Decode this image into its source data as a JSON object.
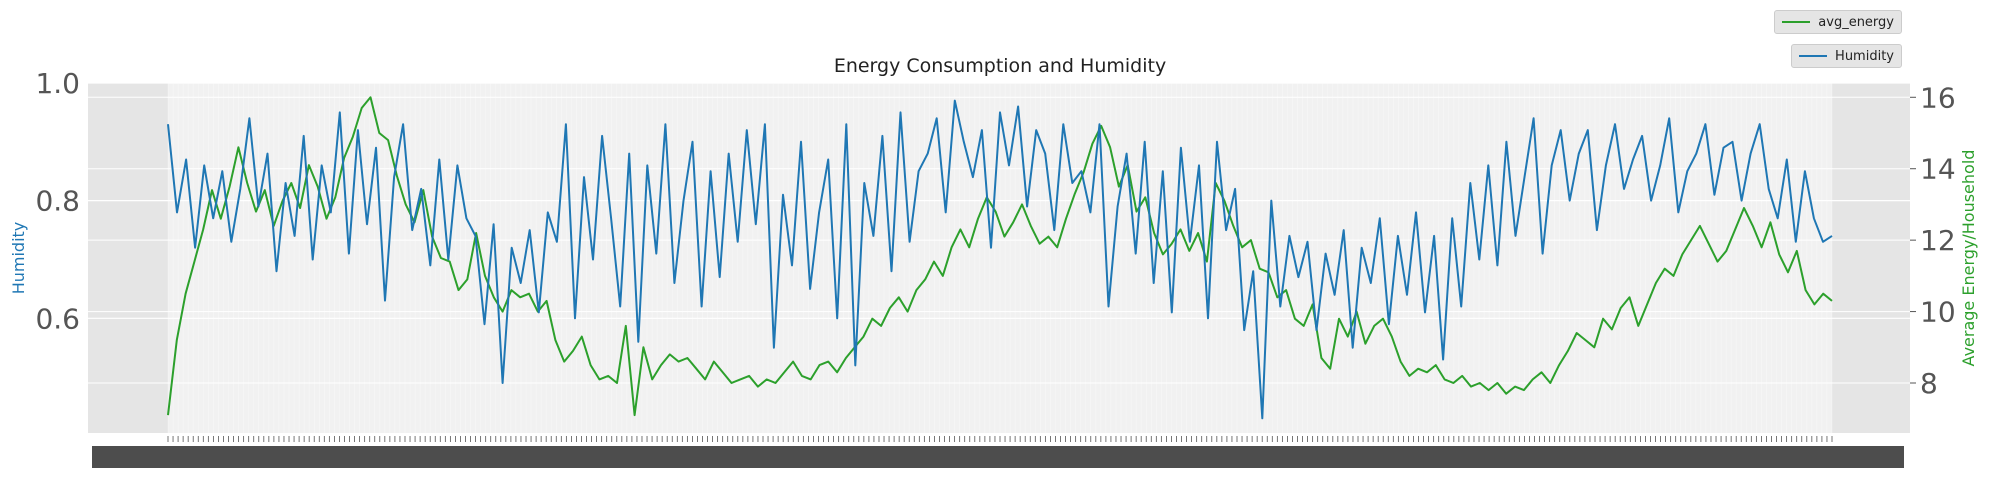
{
  "chart_data": {
    "type": "line",
    "title": "Energy Consumption and Humidity",
    "x_label": "",
    "y_left_label": "Humidity",
    "y_right_label": "Average Energy/Household",
    "y_left_ticks": [
      "0.6",
      "0.8",
      "1.0"
    ],
    "y_right_ticks": [
      "8",
      "10",
      "12",
      "14",
      "16"
    ],
    "y_left_range": [
      0.405,
      1.0
    ],
    "y_right_range": [
      6.6,
      16.4
    ],
    "x_tick_labels_note": "",
    "grid": true,
    "legend_placement": "top-right outside",
    "series": [
      {
        "name": "avg_energy",
        "axis": "right",
        "color": "#2ca02c",
        "values": [
          7.1,
          9.2,
          10.5,
          11.4,
          12.3,
          13.4,
          12.6,
          13.5,
          14.6,
          13.6,
          12.8,
          13.4,
          12.4,
          13.1,
          13.6,
          12.9,
          14.1,
          13.5,
          12.6,
          13.2,
          14.3,
          14.9,
          15.7,
          16.0,
          15.0,
          14.8,
          13.8,
          13.0,
          12.5,
          13.4,
          12.1,
          11.5,
          11.4,
          10.6,
          10.9,
          12.2,
          11.0,
          10.4,
          10.0,
          10.6,
          10.4,
          10.5,
          10.0,
          10.3,
          9.2,
          8.6,
          8.9,
          9.3,
          8.5,
          8.1,
          8.2,
          8.0,
          9.6,
          7.1,
          9.0,
          8.1,
          8.5,
          8.8,
          8.6,
          8.7,
          8.4,
          8.1,
          8.6,
          8.3,
          8.0,
          8.1,
          8.2,
          7.9,
          8.1,
          8.0,
          8.3,
          8.6,
          8.2,
          8.1,
          8.5,
          8.6,
          8.3,
          8.7,
          9.0,
          9.3,
          9.8,
          9.6,
          10.1,
          10.4,
          10.0,
          10.6,
          10.9,
          11.4,
          11.0,
          11.8,
          12.3,
          11.8,
          12.6,
          13.2,
          12.8,
          12.1,
          12.5,
          13.0,
          12.4,
          11.9,
          12.1,
          11.8,
          12.6,
          13.3,
          13.9,
          14.7,
          15.2,
          14.6,
          13.5,
          14.1,
          12.8,
          13.2,
          12.2,
          11.6,
          11.9,
          12.3,
          11.7,
          12.2,
          11.4,
          13.6,
          13.1,
          12.4,
          11.8,
          12.0,
          11.2,
          11.1,
          10.4,
          10.6,
          9.8,
          9.6,
          10.2,
          8.7,
          8.4,
          9.8,
          9.3,
          10.0,
          9.1,
          9.6,
          9.8,
          9.3,
          8.6,
          8.2,
          8.4,
          8.3,
          8.5,
          8.1,
          8.0,
          8.2,
          7.9,
          8.0,
          7.8,
          8.0,
          7.7,
          7.9,
          7.8,
          8.1,
          8.3,
          8.0,
          8.5,
          8.9,
          9.4,
          9.2,
          9.0,
          9.8,
          9.5,
          10.1,
          10.4,
          9.6,
          10.2,
          10.8,
          11.2,
          11.0,
          11.6,
          12.0,
          12.4,
          11.9,
          11.4,
          11.7,
          12.3,
          12.9,
          12.4,
          11.8,
          12.5,
          11.6,
          11.1,
          11.7,
          10.6,
          10.2,
          10.5,
          10.3
        ]
      },
      {
        "name": "Humidity",
        "axis": "left",
        "color": "#1f77b4",
        "values": [
          0.93,
          0.78,
          0.87,
          0.72,
          0.86,
          0.77,
          0.85,
          0.73,
          0.82,
          0.94,
          0.79,
          0.88,
          0.68,
          0.83,
          0.74,
          0.91,
          0.7,
          0.86,
          0.78,
          0.95,
          0.71,
          0.92,
          0.76,
          0.89,
          0.63,
          0.84,
          0.93,
          0.75,
          0.82,
          0.69,
          0.87,
          0.7,
          0.86,
          0.77,
          0.74,
          0.59,
          0.76,
          0.49,
          0.72,
          0.66,
          0.75,
          0.61,
          0.78,
          0.73,
          0.93,
          0.6,
          0.84,
          0.7,
          0.91,
          0.77,
          0.62,
          0.88,
          0.56,
          0.86,
          0.71,
          0.93,
          0.66,
          0.8,
          0.9,
          0.62,
          0.85,
          0.67,
          0.88,
          0.73,
          0.92,
          0.76,
          0.93,
          0.55,
          0.81,
          0.69,
          0.9,
          0.65,
          0.78,
          0.87,
          0.6,
          0.93,
          0.52,
          0.83,
          0.74,
          0.91,
          0.68,
          0.95,
          0.73,
          0.85,
          0.88,
          0.94,
          0.78,
          0.97,
          0.9,
          0.84,
          0.92,
          0.72,
          0.95,
          0.86,
          0.96,
          0.79,
          0.92,
          0.88,
          0.75,
          0.93,
          0.83,
          0.85,
          0.78,
          0.93,
          0.62,
          0.79,
          0.88,
          0.71,
          0.9,
          0.66,
          0.85,
          0.61,
          0.89,
          0.73,
          0.86,
          0.6,
          0.9,
          0.75,
          0.82,
          0.58,
          0.68,
          0.43,
          0.8,
          0.62,
          0.74,
          0.67,
          0.73,
          0.58,
          0.71,
          0.64,
          0.75,
          0.55,
          0.72,
          0.66,
          0.77,
          0.59,
          0.74,
          0.64,
          0.78,
          0.61,
          0.74,
          0.53,
          0.77,
          0.62,
          0.83,
          0.7,
          0.86,
          0.69,
          0.9,
          0.74,
          0.84,
          0.94,
          0.71,
          0.86,
          0.92,
          0.8,
          0.88,
          0.92,
          0.75,
          0.86,
          0.93,
          0.82,
          0.87,
          0.91,
          0.8,
          0.86,
          0.94,
          0.78,
          0.85,
          0.88,
          0.93,
          0.81,
          0.89,
          0.9,
          0.8,
          0.88,
          0.93,
          0.82,
          0.77,
          0.87,
          0.73,
          0.85,
          0.77,
          0.73,
          0.74
        ]
      }
    ]
  }
}
